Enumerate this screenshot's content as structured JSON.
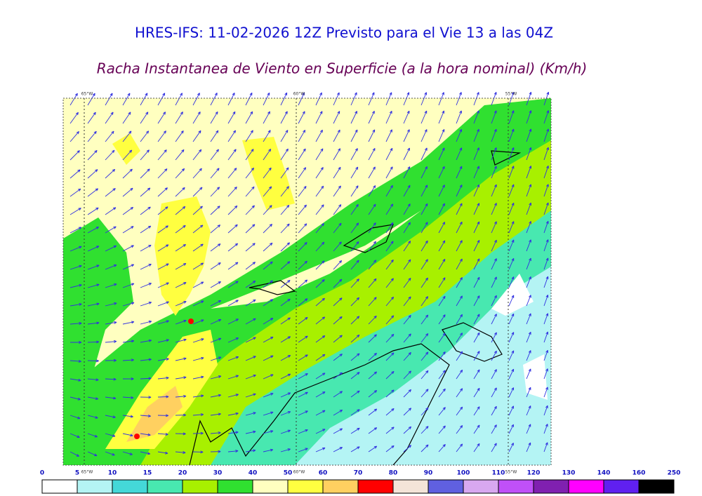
{
  "header": {
    "title": "HRES-IFS: 11-02-2026 12Z Previsto para el Vie 13 a las 04Z",
    "subtitle": "Racha Instantanea de Viento en Superficie (a la hora nominal) (Km/h)"
  },
  "map": {
    "lon_labels": [
      "65°W",
      "60°W",
      "55°W"
    ]
  },
  "colorbar": {
    "ticks": [
      0,
      5,
      10,
      15,
      20,
      30,
      40,
      50,
      60,
      70,
      80,
      90,
      100,
      110,
      120,
      130,
      140,
      160,
      250
    ],
    "colors": [
      "#ffffff",
      "#b4f4f4",
      "#44d8d8",
      "#48e8b0",
      "#a8f000",
      "#30e030",
      "#ffffc0",
      "#ffff40",
      "#ffd060",
      "#ff0000",
      "#f4e4d8",
      "#6060e0",
      "#d8a8f0",
      "#c050f8",
      "#8020b0",
      "#ff00ff",
      "#6020f0",
      "#000000"
    ]
  }
}
